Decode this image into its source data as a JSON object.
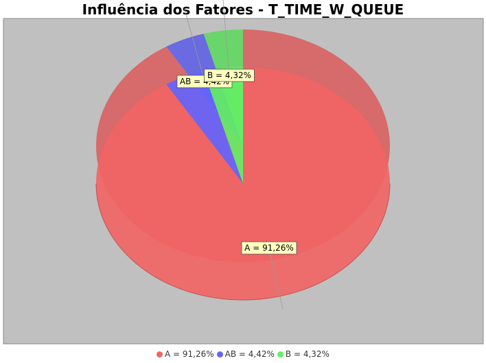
{
  "chart_data": {
    "type": "pie",
    "title": "Influência dos Fatores - T_TIME_W_QUEUE",
    "slices": [
      {
        "name": "A",
        "value": 91.26,
        "label": "A = 91,26%",
        "color": "#f26464"
      },
      {
        "name": "AB",
        "value": 4.42,
        "label": "AB = 4,42%",
        "color": "#6464ff"
      },
      {
        "name": "B",
        "value": 4.32,
        "label": "B = 4,32%",
        "color": "#64f064"
      }
    ],
    "legend": "bottom",
    "style": "3d"
  },
  "colors": {
    "plot_background": "#c0c0c0",
    "label_background": "#ffffc0"
  }
}
